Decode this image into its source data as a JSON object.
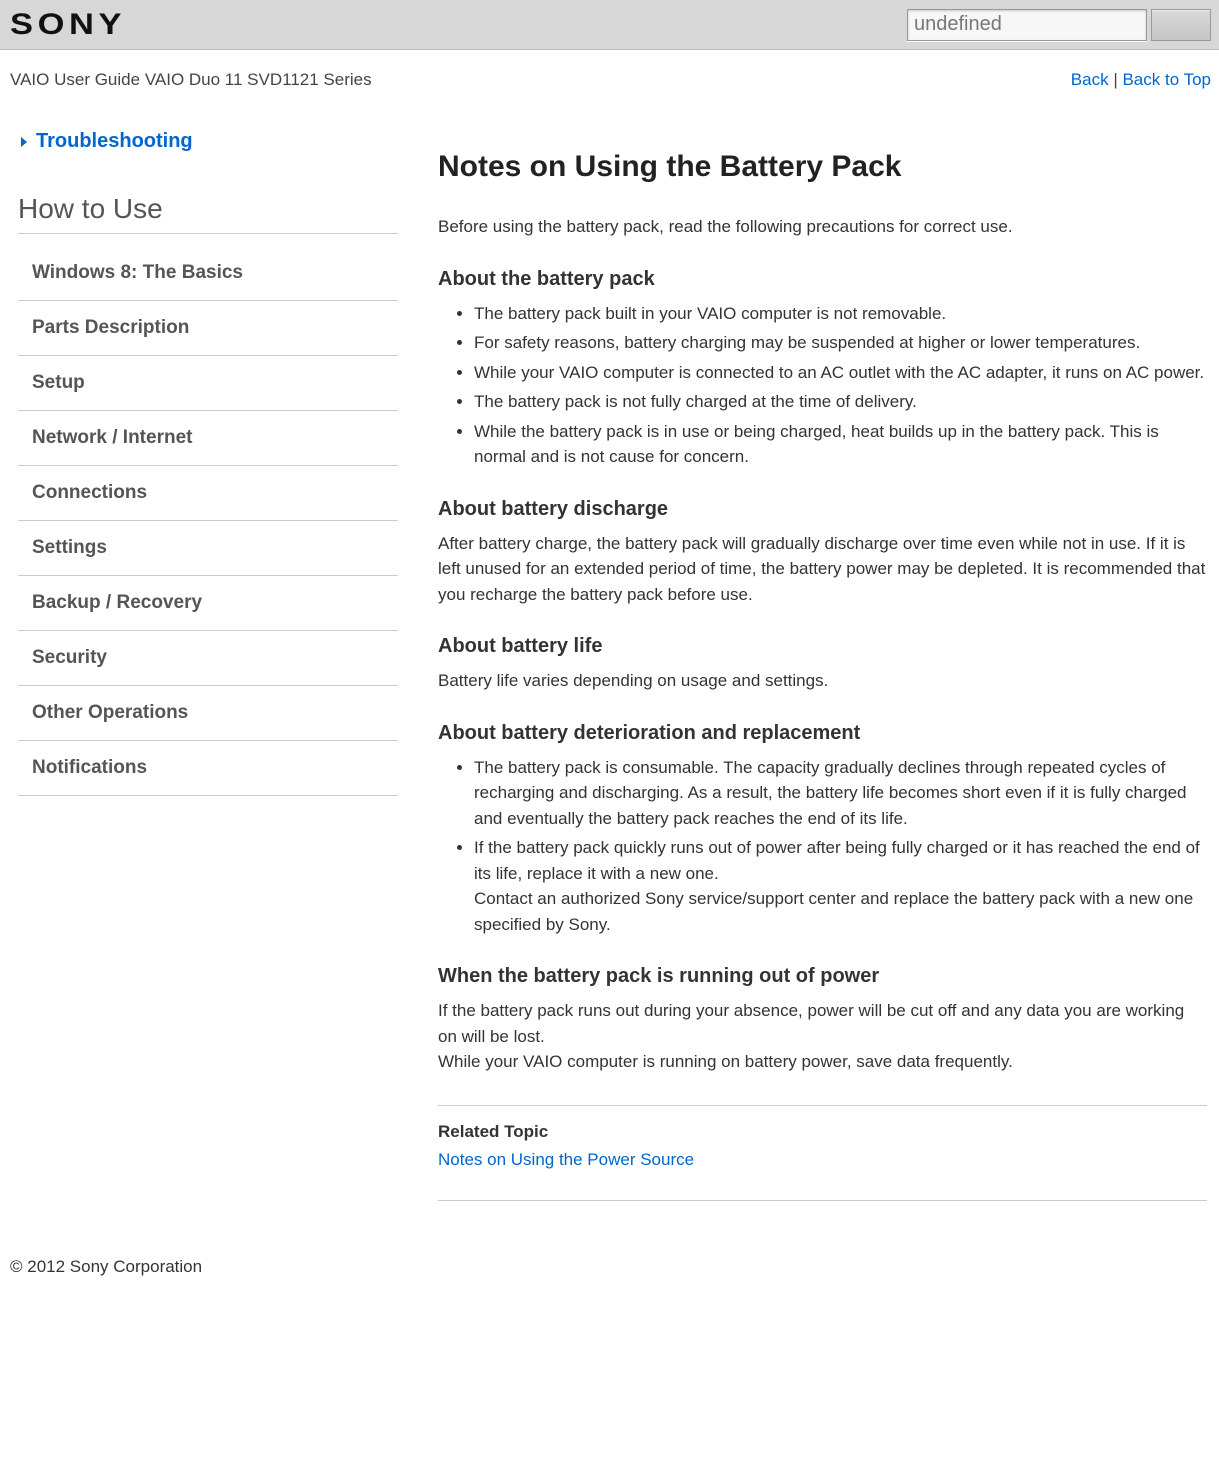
{
  "colors": {
    "topbar_bg": "#d7d7d7",
    "link": "#0066cc",
    "text": "#333333",
    "heading": "#222222",
    "sidebar_heading": "#555555",
    "border": "#cccccc"
  },
  "topbar": {
    "logo_text": "SONY",
    "search_value": "undefined"
  },
  "breadcrumb": {
    "guide": "VAIO User Guide",
    "series": "VAIO Duo 11 SVD1121 Series",
    "back": "Back",
    "separator": " | ",
    "back_to_top": "Back to Top"
  },
  "sidebar": {
    "troubleshooting": "Troubleshooting",
    "heading": "How to Use",
    "items": [
      "Windows 8: The Basics",
      "Parts Description",
      "Setup",
      "Network / Internet",
      "Connections",
      "Settings",
      "Backup / Recovery",
      "Security",
      "Other Operations",
      "Notifications"
    ]
  },
  "article": {
    "title": "Notes on Using the Battery Pack",
    "intro": "Before using the battery pack, read the following precautions for correct use.",
    "sections": [
      {
        "heading": "About the battery pack",
        "type": "list",
        "items": [
          "The battery pack built in your VAIO computer is not removable.",
          "For safety reasons, battery charging may be suspended at higher or lower temperatures.",
          "While your VAIO computer is connected to an AC outlet with the AC adapter, it runs on AC power.",
          "The battery pack is not fully charged at the time of delivery.",
          "While the battery pack is in use or being charged, heat builds up in the battery pack. This is normal and is not cause for concern."
        ]
      },
      {
        "heading": "About battery discharge",
        "type": "text",
        "body": "After battery charge, the battery pack will gradually discharge over time even while not in use. If it is left unused for an extended period of time, the battery power may be depleted. It is recommended that you recharge the battery pack before use."
      },
      {
        "heading": "About battery life",
        "type": "text",
        "body": "Battery life varies depending on usage and settings."
      },
      {
        "heading": "About battery deterioration and replacement",
        "type": "list",
        "items": [
          "The battery pack is consumable. The capacity gradually declines through repeated cycles of recharging and discharging. As a result, the battery life becomes short even if it is fully charged and eventually the battery pack reaches the end of its life.",
          "If the battery pack quickly runs out of power after being fully charged or it has reached the end of its life, replace it with a new one.\nContact an authorized Sony service/support center and replace the battery pack with a new one specified by Sony."
        ]
      },
      {
        "heading": "When the battery pack is running out of power",
        "type": "text",
        "body": "If the battery pack runs out during your absence, power will be cut off and any data you are working on will be lost.\nWhile your VAIO computer is running on battery power, save data frequently."
      }
    ],
    "related_label": "Related Topic",
    "related_link": "Notes on Using the Power Source"
  },
  "footer": {
    "copyright": "© 2012 Sony Corporation"
  }
}
